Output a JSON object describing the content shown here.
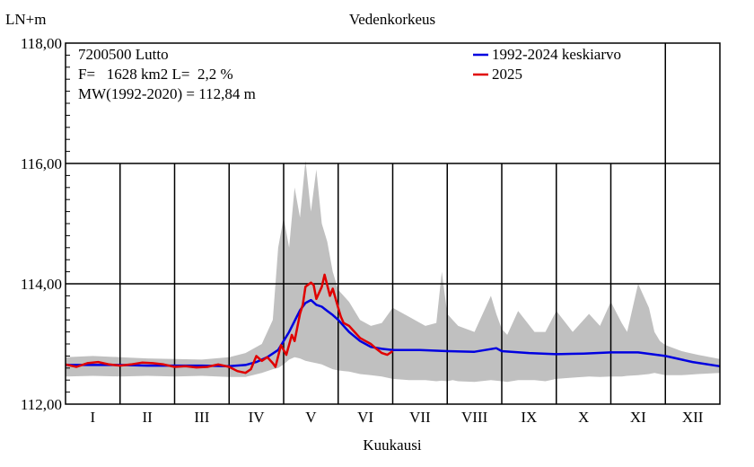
{
  "chart_data": {
    "type": "line",
    "title": "Vedenkorkeus",
    "ylabel": "LN+m",
    "xlabel": "Kuukausi",
    "ylim": [
      112,
      118
    ],
    "y_ticks": [
      {
        "value": 112,
        "label": "112,00"
      },
      {
        "value": 114,
        "label": "114,00"
      },
      {
        "value": 116,
        "label": "116,00"
      },
      {
        "value": 118,
        "label": "118,00"
      }
    ],
    "xlim": [
      0,
      12
    ],
    "months": [
      "I",
      "II",
      "III",
      "IV",
      "V",
      "VI",
      "VII",
      "VIII",
      "IX",
      "X",
      "XI",
      "XII"
    ],
    "info_lines": [
      "7200500 Lutto",
      "F=   1628 km2 L=  2,2 %",
      "MW(1992-2020) = 112,84 m"
    ],
    "legend_position": "top-right",
    "grid": true,
    "range_band": {
      "color": "#c0c0c0",
      "x": [
        0.0,
        0.5,
        1.0,
        1.5,
        2.0,
        2.5,
        3.0,
        3.3,
        3.6,
        3.8,
        3.9,
        4.0,
        4.1,
        4.2,
        4.3,
        4.4,
        4.5,
        4.6,
        4.7,
        4.8,
        4.9,
        5.0,
        5.2,
        5.4,
        5.6,
        5.8,
        6.0,
        6.3,
        6.6,
        6.8,
        6.9,
        7.0,
        7.1,
        7.2,
        7.5,
        7.8,
        7.9,
        8.0,
        8.1,
        8.3,
        8.6,
        8.8,
        9.0,
        9.3,
        9.6,
        9.8,
        10.0,
        10.2,
        10.3,
        10.5,
        10.7,
        10.8,
        10.9,
        11.0,
        11.3,
        11.6,
        12.0
      ],
      "max": [
        112.78,
        112.8,
        112.78,
        112.76,
        112.75,
        112.74,
        112.78,
        112.85,
        113.0,
        113.4,
        114.6,
        115.1,
        114.6,
        115.6,
        115.1,
        116.05,
        115.2,
        115.9,
        115.0,
        114.7,
        114.2,
        113.9,
        113.7,
        113.4,
        113.3,
        113.35,
        113.6,
        113.45,
        113.3,
        113.35,
        114.2,
        113.5,
        113.4,
        113.3,
        113.2,
        113.8,
        113.5,
        113.25,
        113.15,
        113.55,
        113.2,
        113.2,
        113.55,
        113.2,
        113.5,
        113.3,
        113.7,
        113.35,
        113.2,
        114.0,
        113.6,
        113.2,
        113.05,
        112.98,
        112.88,
        112.82,
        112.75
      ],
      "min": [
        112.46,
        112.47,
        112.46,
        112.47,
        112.46,
        112.47,
        112.45,
        112.45,
        112.52,
        112.58,
        112.6,
        112.66,
        112.74,
        112.78,
        112.76,
        112.72,
        112.7,
        112.68,
        112.66,
        112.62,
        112.58,
        112.56,
        112.54,
        112.5,
        112.48,
        112.46,
        112.42,
        112.4,
        112.4,
        112.38,
        112.39,
        112.38,
        112.4,
        112.38,
        112.37,
        112.4,
        112.39,
        112.38,
        112.37,
        112.4,
        112.4,
        112.38,
        112.42,
        112.44,
        112.46,
        112.45,
        112.46,
        112.46,
        112.47,
        112.48,
        112.5,
        112.52,
        112.5,
        112.48,
        112.48,
        112.5,
        112.52
      ]
    },
    "series": [
      {
        "name": "1992-2024 keskiarvo",
        "color": "#0000e0",
        "x": [
          0.0,
          0.5,
          1.0,
          1.5,
          2.0,
          2.5,
          3.0,
          3.3,
          3.5,
          3.7,
          3.9,
          4.0,
          4.1,
          4.2,
          4.3,
          4.4,
          4.5,
          4.6,
          4.7,
          4.8,
          4.9,
          5.0,
          5.2,
          5.4,
          5.6,
          5.8,
          6.0,
          6.5,
          7.0,
          7.5,
          7.9,
          8.0,
          8.5,
          9.0,
          9.5,
          10.0,
          10.5,
          11.0,
          11.5,
          12.0
        ],
        "y": [
          112.65,
          112.65,
          112.65,
          112.64,
          112.64,
          112.64,
          112.63,
          112.65,
          112.7,
          112.78,
          112.9,
          113.05,
          113.2,
          113.38,
          113.56,
          113.68,
          113.73,
          113.65,
          113.62,
          113.55,
          113.48,
          113.4,
          113.2,
          113.05,
          112.95,
          112.92,
          112.9,
          112.9,
          112.88,
          112.87,
          112.93,
          112.88,
          112.85,
          112.83,
          112.84,
          112.86,
          112.86,
          112.8,
          112.7,
          112.63
        ]
      },
      {
        "name": "2025",
        "color": "#e00000",
        "x": [
          0.0,
          0.2,
          0.4,
          0.6,
          0.8,
          1.0,
          1.2,
          1.4,
          1.6,
          1.8,
          2.0,
          2.2,
          2.4,
          2.6,
          2.8,
          3.0,
          3.15,
          3.3,
          3.4,
          3.5,
          3.6,
          3.7,
          3.8,
          3.85,
          3.95,
          4.05,
          4.15,
          4.2,
          4.3,
          4.35,
          4.4,
          4.5,
          4.55,
          4.6,
          4.7,
          4.75,
          4.85,
          4.9,
          5.0,
          5.05,
          5.1,
          5.2,
          5.3,
          5.4,
          5.5,
          5.6,
          5.7,
          5.8,
          5.9,
          6.0
        ],
        "y": [
          112.66,
          112.62,
          112.68,
          112.7,
          112.66,
          112.64,
          112.66,
          112.69,
          112.68,
          112.66,
          112.62,
          112.63,
          112.61,
          112.62,
          112.66,
          112.62,
          112.55,
          112.52,
          112.58,
          112.8,
          112.72,
          112.78,
          112.68,
          112.62,
          112.98,
          112.82,
          113.15,
          113.05,
          113.5,
          113.65,
          113.95,
          114.02,
          113.98,
          113.75,
          113.95,
          114.15,
          113.8,
          113.92,
          113.6,
          113.45,
          113.35,
          113.3,
          113.2,
          113.1,
          113.05,
          113.0,
          112.92,
          112.85,
          112.82,
          112.88
        ]
      }
    ]
  }
}
